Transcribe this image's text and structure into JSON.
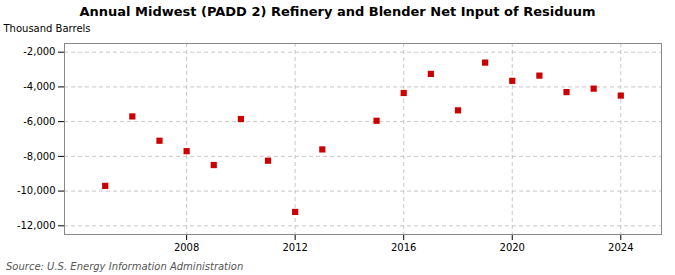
{
  "chart_data": {
    "type": "scatter",
    "title": "Annual Midwest (PADD 2) Refinery and Blender Net Input of Residuum",
    "ylabel": "Thousand Barrels",
    "annotations": [
      "Source: U.S. Energy Information Administration"
    ],
    "x": [
      2005,
      2006,
      2007,
      2008,
      2009,
      2010,
      2011,
      2012,
      2013,
      2015,
      2016,
      2017,
      2018,
      2019,
      2020,
      2021,
      2022,
      2023,
      2024
    ],
    "values": [
      -9700,
      -5700,
      -7100,
      -7700,
      -8500,
      -5850,
      -8250,
      -11200,
      -7600,
      -5950,
      -4350,
      -3250,
      -5350,
      -2600,
      -3650,
      -3350,
      -4300,
      -4100,
      -4500
    ],
    "color": "#cc0000",
    "marker": "square",
    "xlim": [
      2003.5,
      2025.5
    ],
    "xticks": [
      2008,
      2012,
      2016,
      2020,
      2024
    ],
    "ylim": [
      -12500,
      -1500
    ],
    "yticks": [
      {
        "value": -12000,
        "label": "-12,000"
      },
      {
        "value": -10000,
        "label": "-10,000"
      },
      {
        "value": -8000,
        "label": "-8,000"
      },
      {
        "value": -6000,
        "label": "-6,000"
      },
      {
        "value": -4000,
        "label": "-4,000"
      },
      {
        "value": -2000,
        "label": "-2,000"
      }
    ],
    "grid": true
  }
}
